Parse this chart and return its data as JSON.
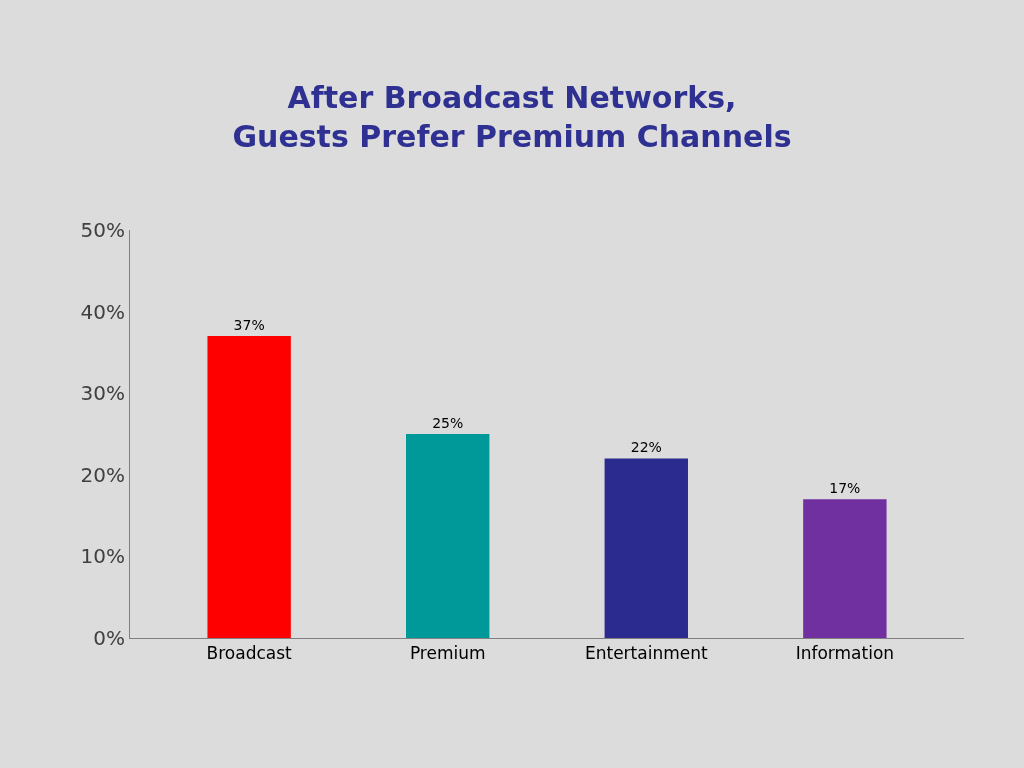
{
  "chart_data": {
    "type": "bar",
    "title": "After Broadcast Networks,\nGuests Prefer Premium Channels",
    "categories": [
      "Broadcast",
      "Premium",
      "Entertainment",
      "Information"
    ],
    "values": [
      37,
      25,
      22,
      17
    ],
    "colors": [
      "#ff0000",
      "#009999",
      "#2b2b8f",
      "#7030a0"
    ],
    "value_labels": [
      "37%",
      "25%",
      "22%",
      "17%"
    ],
    "ylim": [
      0,
      50
    ],
    "yticks": [
      {
        "value": 0,
        "label": "0%"
      },
      {
        "value": 10,
        "label": "10%"
      },
      {
        "value": 20,
        "label": "20%"
      },
      {
        "value": 30,
        "label": "30%"
      },
      {
        "value": 40,
        "label": "40%"
      },
      {
        "value": 50,
        "label": "50%"
      }
    ],
    "grid": false,
    "legend": false
  }
}
